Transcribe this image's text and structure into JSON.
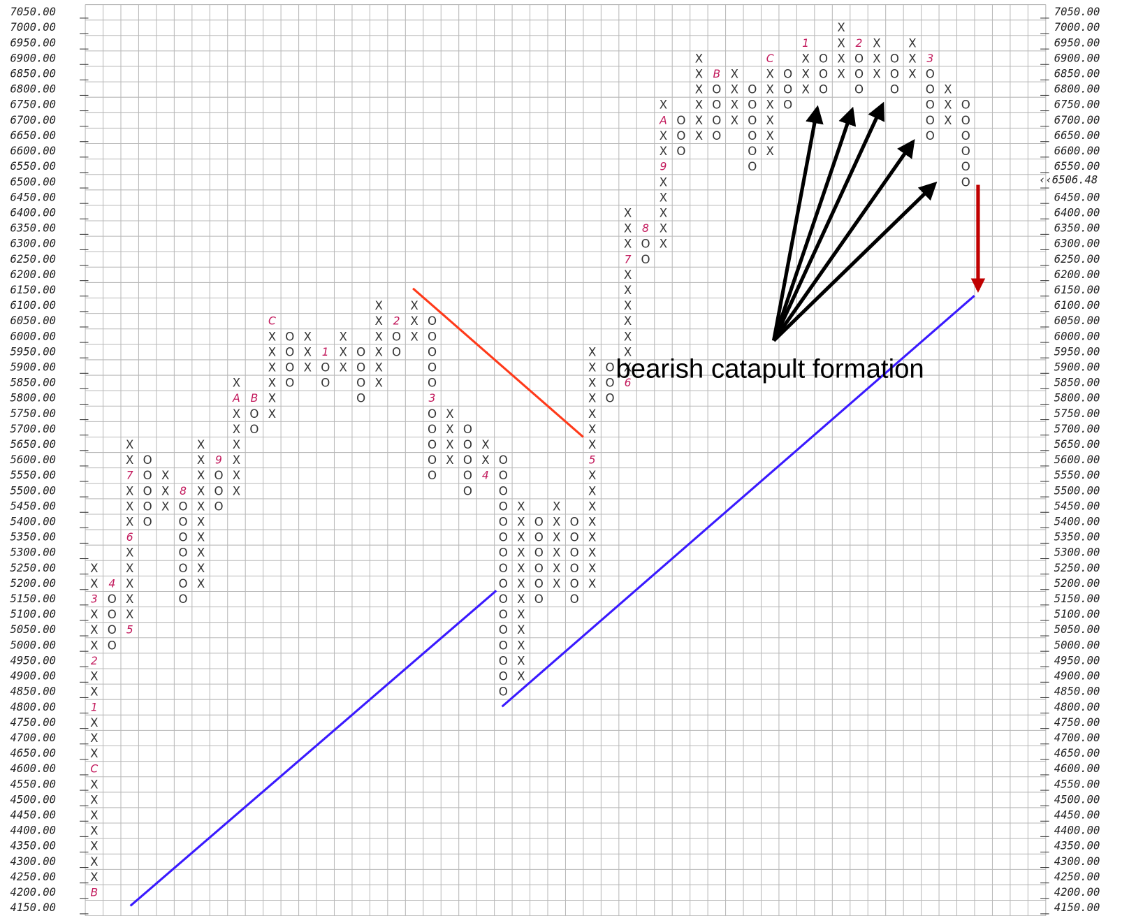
{
  "chart_data": {
    "type": "pointfigure",
    "box_size": 50,
    "ylim": [
      4150,
      7050
    ],
    "grid": true,
    "x_color": "#333333",
    "o_color": "#333333",
    "marker_color": "#c2185b",
    "last_price": {
      "value": 6506.48,
      "label": "‹‹6506.48"
    },
    "last_price_color": "#d0103a",
    "annotation": "bearish catapult formation",
    "yticks": [
      {
        "value": 4150,
        "label": "4150.00"
      },
      {
        "value": 4200,
        "label": "4200.00"
      },
      {
        "value": 4250,
        "label": "4250.00"
      },
      {
        "value": 4300,
        "label": "4300.00"
      },
      {
        "value": 4350,
        "label": "4350.00"
      },
      {
        "value": 4400,
        "label": "4400.00"
      },
      {
        "value": 4450,
        "label": "4450.00"
      },
      {
        "value": 4500,
        "label": "4500.00"
      },
      {
        "value": 4550,
        "label": "4550.00"
      },
      {
        "value": 4600,
        "label": "4600.00"
      },
      {
        "value": 4650,
        "label": "4650.00"
      },
      {
        "value": 4700,
        "label": "4700.00"
      },
      {
        "value": 4750,
        "label": "4750.00"
      },
      {
        "value": 4800,
        "label": "4800.00"
      },
      {
        "value": 4850,
        "label": "4850.00"
      },
      {
        "value": 4900,
        "label": "4900.00"
      },
      {
        "value": 4950,
        "label": "4950.00"
      },
      {
        "value": 5000,
        "label": "5000.00"
      },
      {
        "value": 5050,
        "label": "5050.00"
      },
      {
        "value": 5100,
        "label": "5100.00"
      },
      {
        "value": 5150,
        "label": "5150.00"
      },
      {
        "value": 5200,
        "label": "5200.00"
      },
      {
        "value": 5250,
        "label": "5250.00"
      },
      {
        "value": 5300,
        "label": "5300.00"
      },
      {
        "value": 5350,
        "label": "5350.00"
      },
      {
        "value": 5400,
        "label": "5400.00"
      },
      {
        "value": 5450,
        "label": "5450.00"
      },
      {
        "value": 5500,
        "label": "5500.00"
      },
      {
        "value": 5550,
        "label": "5550.00"
      },
      {
        "value": 5600,
        "label": "5600.00"
      },
      {
        "value": 5650,
        "label": "5650.00"
      },
      {
        "value": 5700,
        "label": "5700.00"
      },
      {
        "value": 5750,
        "label": "5750.00"
      },
      {
        "value": 5800,
        "label": "5800.00"
      },
      {
        "value": 5850,
        "label": "5850.00"
      },
      {
        "value": 5900,
        "label": "5900.00"
      },
      {
        "value": 5950,
        "label": "5950.00"
      },
      {
        "value": 6000,
        "label": "6000.00"
      },
      {
        "value": 6050,
        "label": "6050.00"
      },
      {
        "value": 6100,
        "label": "6100.00"
      },
      {
        "value": 6150,
        "label": "6150.00"
      },
      {
        "value": 6200,
        "label": "6200.00"
      },
      {
        "value": 6250,
        "label": "6250.00"
      },
      {
        "value": 6300,
        "label": "6300.00"
      },
      {
        "value": 6350,
        "label": "6350.00"
      },
      {
        "value": 6400,
        "label": "6400.00"
      },
      {
        "value": 6450,
        "label": "6450.00"
      },
      {
        "value": 6500,
        "label": "6500.00"
      },
      {
        "value": 6550,
        "label": "6550.00"
      },
      {
        "value": 6600,
        "label": "6600.00"
      },
      {
        "value": 6650,
        "label": "6650.00"
      },
      {
        "value": 6700,
        "label": "6700.00"
      },
      {
        "value": 6750,
        "label": "6750.00"
      },
      {
        "value": 6800,
        "label": "6800.00"
      },
      {
        "value": 6850,
        "label": "6850.00"
      },
      {
        "value": 6900,
        "label": "6900.00"
      },
      {
        "value": 6950,
        "label": "6950.00"
      },
      {
        "value": 7000,
        "label": "7000.00"
      },
      {
        "value": 7050,
        "label": "7050.00"
      }
    ],
    "columns": [
      {
        "type": "X",
        "low": 4200,
        "high": 5250,
        "markers": [
          {
            "value": 4200,
            "label": "B"
          },
          {
            "value": 4600,
            "label": "C"
          },
          {
            "value": 4800,
            "label": "1"
          },
          {
            "value": 4950,
            "label": "2"
          },
          {
            "value": 5150,
            "label": "3"
          }
        ]
      },
      {
        "type": "O",
        "low": 5000,
        "high": 5200,
        "markers": [
          {
            "value": 5200,
            "label": "4"
          }
        ]
      },
      {
        "type": "X",
        "low": 5050,
        "high": 5650,
        "markers": [
          {
            "value": 5050,
            "label": "5"
          },
          {
            "value": 5350,
            "label": "6"
          },
          {
            "value": 5550,
            "label": "7"
          }
        ]
      },
      {
        "type": "O",
        "low": 5400,
        "high": 5600
      },
      {
        "type": "X",
        "low": 5450,
        "high": 5550
      },
      {
        "type": "O",
        "low": 5150,
        "high": 5500,
        "markers": [
          {
            "value": 5500,
            "label": "8"
          }
        ]
      },
      {
        "type": "X",
        "low": 5200,
        "high": 5650
      },
      {
        "type": "O",
        "low": 5450,
        "high": 5600,
        "markers": [
          {
            "value": 5600,
            "label": "9"
          }
        ]
      },
      {
        "type": "X",
        "low": 5500,
        "high": 5850,
        "markers": [
          {
            "value": 5800,
            "label": "A"
          }
        ]
      },
      {
        "type": "O",
        "low": 5700,
        "high": 5800,
        "markers": [
          {
            "value": 5800,
            "label": "B"
          }
        ]
      },
      {
        "type": "X",
        "low": 5750,
        "high": 6050,
        "markers": [
          {
            "value": 6050,
            "label": "C"
          }
        ]
      },
      {
        "type": "O",
        "low": 5850,
        "high": 6000
      },
      {
        "type": "X",
        "low": 5900,
        "high": 6000
      },
      {
        "type": "O",
        "low": 5850,
        "high": 5950,
        "markers": [
          {
            "value": 5950,
            "label": "1"
          }
        ]
      },
      {
        "type": "X",
        "low": 5900,
        "high": 6000
      },
      {
        "type": "O",
        "low": 5800,
        "high": 5950
      },
      {
        "type": "X",
        "low": 5850,
        "high": 6100
      },
      {
        "type": "O",
        "low": 5950,
        "high": 6050,
        "markers": [
          {
            "value": 6050,
            "label": "2"
          }
        ]
      },
      {
        "type": "X",
        "low": 6000,
        "high": 6100
      },
      {
        "type": "O",
        "low": 5550,
        "high": 6050,
        "markers": [
          {
            "value": 5800,
            "label": "3"
          }
        ]
      },
      {
        "type": "X",
        "low": 5600,
        "high": 5750
      },
      {
        "type": "O",
        "low": 5500,
        "high": 5700
      },
      {
        "type": "X",
        "low": 5550,
        "high": 5650,
        "markers": [
          {
            "value": 5550,
            "label": "4"
          }
        ]
      },
      {
        "type": "O",
        "low": 4850,
        "high": 5600
      },
      {
        "type": "X",
        "low": 4900,
        "high": 5450
      },
      {
        "type": "O",
        "low": 5150,
        "high": 5400
      },
      {
        "type": "X",
        "low": 5200,
        "high": 5450
      },
      {
        "type": "O",
        "low": 5150,
        "high": 5400
      },
      {
        "type": "X",
        "low": 5200,
        "high": 5950,
        "markers": [
          {
            "value": 5600,
            "label": "5"
          }
        ]
      },
      {
        "type": "O",
        "low": 5800,
        "high": 5900
      },
      {
        "type": "X",
        "low": 5850,
        "high": 6400,
        "markers": [
          {
            "value": 5850,
            "label": "6"
          },
          {
            "value": 6250,
            "label": "7"
          }
        ]
      },
      {
        "type": "O",
        "low": 6250,
        "high": 6350,
        "markers": [
          {
            "value": 6350,
            "label": "8"
          }
        ]
      },
      {
        "type": "X",
        "low": 6300,
        "high": 6750,
        "markers": [
          {
            "value": 6550,
            "label": "9"
          },
          {
            "value": 6700,
            "label": "A"
          }
        ]
      },
      {
        "type": "O",
        "low": 6600,
        "high": 6700
      },
      {
        "type": "X",
        "low": 6650,
        "high": 6900
      },
      {
        "type": "O",
        "low": 6650,
        "high": 6850,
        "markers": [
          {
            "value": 6850,
            "label": "B"
          }
        ]
      },
      {
        "type": "X",
        "low": 6700,
        "high": 6850
      },
      {
        "type": "O",
        "low": 6550,
        "high": 6800
      },
      {
        "type": "X",
        "low": 6600,
        "high": 6900,
        "markers": [
          {
            "value": 6900,
            "label": "C"
          }
        ]
      },
      {
        "type": "O",
        "low": 6750,
        "high": 6850
      },
      {
        "type": "X",
        "low": 6800,
        "high": 6950,
        "markers": [
          {
            "value": 6950,
            "label": "1"
          }
        ]
      },
      {
        "type": "O",
        "low": 6800,
        "high": 6900
      },
      {
        "type": "X",
        "low": 6850,
        "high": 7000
      },
      {
        "type": "O",
        "low": 6800,
        "high": 6950,
        "markers": [
          {
            "value": 6950,
            "label": "2"
          }
        ]
      },
      {
        "type": "X",
        "low": 6850,
        "high": 6950
      },
      {
        "type": "O",
        "low": 6800,
        "high": 6900
      },
      {
        "type": "X",
        "low": 6850,
        "high": 6950
      },
      {
        "type": "O",
        "low": 6650,
        "high": 6900,
        "markers": [
          {
            "value": 6900,
            "label": "3"
          }
        ]
      },
      {
        "type": "X",
        "low": 6700,
        "high": 6800
      },
      {
        "type": "O",
        "low": 6500,
        "high": 6750,
        "recent": {
          "low": 6500,
          "high": 6550,
          "color": "#ff3b30"
        }
      }
    ]
  }
}
